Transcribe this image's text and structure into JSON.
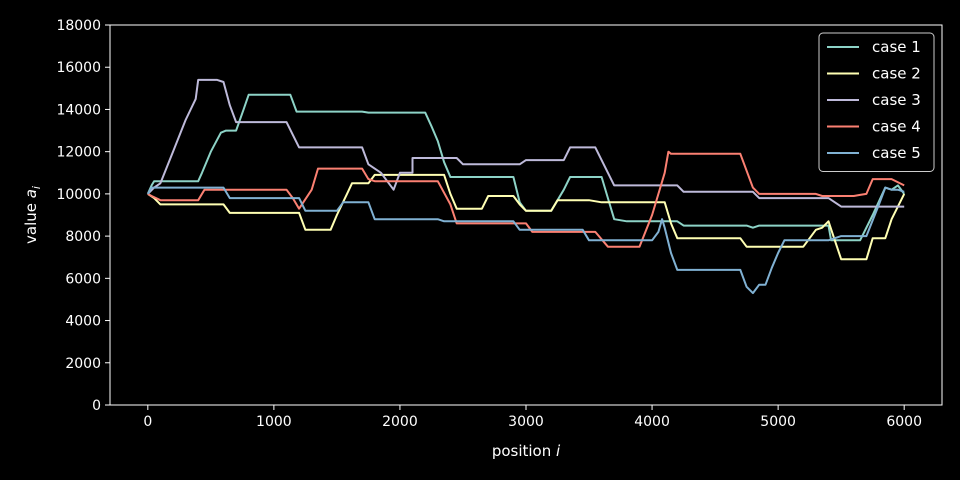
{
  "chart_data": {
    "type": "line",
    "title": "",
    "xlabel": "position i",
    "ylabel": "value a_i",
    "xlim": [
      -300,
      6300
    ],
    "ylim": [
      0,
      18000
    ],
    "xticks": [
      0,
      1000,
      2000,
      3000,
      4000,
      5000,
      6000
    ],
    "yticks": [
      0,
      2000,
      4000,
      6000,
      8000,
      10000,
      12000,
      14000,
      16000,
      18000
    ],
    "legend": {
      "position": "top-right"
    },
    "series": [
      {
        "name": "case 1",
        "color": "#8dd3c7",
        "points": [
          [
            0,
            10000
          ],
          [
            30,
            10400
          ],
          [
            50,
            10600
          ],
          [
            200,
            10600
          ],
          [
            400,
            10600
          ],
          [
            430,
            11000
          ],
          [
            500,
            12000
          ],
          [
            580,
            12900
          ],
          [
            620,
            13000
          ],
          [
            700,
            13000
          ],
          [
            760,
            14000
          ],
          [
            800,
            14700
          ],
          [
            1000,
            14700
          ],
          [
            1130,
            14700
          ],
          [
            1180,
            13900
          ],
          [
            1400,
            13900
          ],
          [
            1700,
            13900
          ],
          [
            1750,
            13850
          ],
          [
            2200,
            13850
          ],
          [
            2250,
            13200
          ],
          [
            2300,
            12500
          ],
          [
            2350,
            11500
          ],
          [
            2400,
            10800
          ],
          [
            2500,
            10800
          ],
          [
            2900,
            10800
          ],
          [
            2950,
            9600
          ],
          [
            3000,
            9200
          ],
          [
            3200,
            9200
          ],
          [
            3300,
            10200
          ],
          [
            3350,
            10800
          ],
          [
            3600,
            10800
          ],
          [
            3650,
            9800
          ],
          [
            3700,
            8800
          ],
          [
            3800,
            8700
          ],
          [
            4200,
            8700
          ],
          [
            4250,
            8500
          ],
          [
            4750,
            8500
          ],
          [
            4800,
            8400
          ],
          [
            4850,
            8500
          ],
          [
            5400,
            8500
          ],
          [
            5420,
            7800
          ],
          [
            5600,
            7800
          ],
          [
            5650,
            7800
          ],
          [
            5750,
            9000
          ],
          [
            5850,
            10300
          ],
          [
            5900,
            10200
          ],
          [
            5950,
            10400
          ],
          [
            6000,
            10000
          ]
        ]
      },
      {
        "name": "case 2",
        "color": "#ffffb3",
        "points": [
          [
            0,
            10000
          ],
          [
            50,
            9800
          ],
          [
            100,
            9500
          ],
          [
            500,
            9500
          ],
          [
            600,
            9500
          ],
          [
            650,
            9100
          ],
          [
            1000,
            9100
          ],
          [
            1200,
            9100
          ],
          [
            1250,
            8300
          ],
          [
            1450,
            8300
          ],
          [
            1500,
            9000
          ],
          [
            1580,
            10000
          ],
          [
            1620,
            10500
          ],
          [
            1750,
            10500
          ],
          [
            1800,
            10900
          ],
          [
            2000,
            10900
          ],
          [
            2350,
            10900
          ],
          [
            2400,
            10000
          ],
          [
            2450,
            9300
          ],
          [
            2650,
            9300
          ],
          [
            2700,
            9900
          ],
          [
            2900,
            9900
          ],
          [
            2950,
            9500
          ],
          [
            3000,
            9200
          ],
          [
            3200,
            9200
          ],
          [
            3250,
            9700
          ],
          [
            3500,
            9700
          ],
          [
            3600,
            9600
          ],
          [
            3900,
            9600
          ],
          [
            4100,
            9600
          ],
          [
            4150,
            8600
          ],
          [
            4200,
            7900
          ],
          [
            4500,
            7900
          ],
          [
            4700,
            7900
          ],
          [
            4750,
            7500
          ],
          [
            5000,
            7500
          ],
          [
            5050,
            7500
          ],
          [
            5200,
            7500
          ],
          [
            5300,
            8300
          ],
          [
            5350,
            8400
          ],
          [
            5400,
            8700
          ],
          [
            5450,
            7800
          ],
          [
            5500,
            6900
          ],
          [
            5700,
            6900
          ],
          [
            5750,
            7900
          ],
          [
            5850,
            7900
          ],
          [
            5900,
            8800
          ],
          [
            6000,
            10000
          ]
        ]
      },
      {
        "name": "case 3",
        "color": "#bebada",
        "points": [
          [
            0,
            10000
          ],
          [
            50,
            10300
          ],
          [
            100,
            10500
          ],
          [
            200,
            12000
          ],
          [
            300,
            13500
          ],
          [
            380,
            14500
          ],
          [
            400,
            15400
          ],
          [
            550,
            15400
          ],
          [
            600,
            15300
          ],
          [
            650,
            14200
          ],
          [
            700,
            13400
          ],
          [
            1000,
            13400
          ],
          [
            1100,
            13400
          ],
          [
            1150,
            12800
          ],
          [
            1200,
            12200
          ],
          [
            1500,
            12200
          ],
          [
            1700,
            12200
          ],
          [
            1750,
            11400
          ],
          [
            1850,
            11000
          ],
          [
            1950,
            10200
          ],
          [
            2000,
            11000
          ],
          [
            2100,
            11000
          ],
          [
            2100,
            11700
          ],
          [
            2450,
            11700
          ],
          [
            2500,
            11400
          ],
          [
            2950,
            11400
          ],
          [
            3000,
            11600
          ],
          [
            3300,
            11600
          ],
          [
            3350,
            12200
          ],
          [
            3550,
            12200
          ],
          [
            3700,
            10400
          ],
          [
            4200,
            10400
          ],
          [
            4250,
            10100
          ],
          [
            4800,
            10100
          ],
          [
            4850,
            9800
          ],
          [
            5400,
            9800
          ],
          [
            5500,
            9400
          ],
          [
            6000,
            9400
          ]
        ]
      },
      {
        "name": "case 4",
        "color": "#fb8072",
        "points": [
          [
            0,
            10000
          ],
          [
            30,
            9900
          ],
          [
            100,
            9700
          ],
          [
            400,
            9700
          ],
          [
            450,
            10200
          ],
          [
            600,
            10200
          ],
          [
            650,
            10200
          ],
          [
            1100,
            10200
          ],
          [
            1150,
            9800
          ],
          [
            1200,
            9300
          ],
          [
            1300,
            10200
          ],
          [
            1350,
            11200
          ],
          [
            1700,
            11200
          ],
          [
            1750,
            10700
          ],
          [
            1800,
            10600
          ],
          [
            2000,
            10600
          ],
          [
            2300,
            10600
          ],
          [
            2400,
            9500
          ],
          [
            2450,
            8600
          ],
          [
            2800,
            8600
          ],
          [
            3000,
            8600
          ],
          [
            3050,
            8200
          ],
          [
            3550,
            8200
          ],
          [
            3650,
            7500
          ],
          [
            3900,
            7500
          ],
          [
            4000,
            9000
          ],
          [
            4100,
            11000
          ],
          [
            4130,
            12000
          ],
          [
            4150,
            11900
          ],
          [
            4600,
            11900
          ],
          [
            4700,
            11900
          ],
          [
            4800,
            10300
          ],
          [
            4850,
            10000
          ],
          [
            5300,
            10000
          ],
          [
            5350,
            9900
          ],
          [
            5600,
            9900
          ],
          [
            5650,
            9950
          ],
          [
            5700,
            10000
          ],
          [
            5750,
            10700
          ],
          [
            5900,
            10700
          ],
          [
            6000,
            10400
          ]
        ]
      },
      {
        "name": "case 5",
        "color": "#80b1d3",
        "points": [
          [
            0,
            10000
          ],
          [
            30,
            10300
          ],
          [
            100,
            10300
          ],
          [
            500,
            10300
          ],
          [
            600,
            10300
          ],
          [
            650,
            9800
          ],
          [
            1000,
            9800
          ],
          [
            1200,
            9800
          ],
          [
            1250,
            9200
          ],
          [
            1500,
            9200
          ],
          [
            1550,
            9600
          ],
          [
            1750,
            9600
          ],
          [
            1800,
            8800
          ],
          [
            2250,
            8800
          ],
          [
            2300,
            8800
          ],
          [
            2350,
            8700
          ],
          [
            2800,
            8700
          ],
          [
            2900,
            8700
          ],
          [
            2950,
            8300
          ],
          [
            3200,
            8300
          ],
          [
            3450,
            8300
          ],
          [
            3500,
            7800
          ],
          [
            3800,
            7800
          ],
          [
            3850,
            7800
          ],
          [
            4000,
            7800
          ],
          [
            4050,
            8200
          ],
          [
            4080,
            8800
          ],
          [
            4100,
            8400
          ],
          [
            4150,
            7200
          ],
          [
            4200,
            6400
          ],
          [
            4700,
            6400
          ],
          [
            4750,
            5600
          ],
          [
            4800,
            5300
          ],
          [
            4850,
            5700
          ],
          [
            4900,
            5700
          ],
          [
            4950,
            6500
          ],
          [
            5000,
            7200
          ],
          [
            5050,
            7800
          ],
          [
            5250,
            7800
          ],
          [
            5300,
            7800
          ],
          [
            5400,
            7800
          ],
          [
            5450,
            7900
          ],
          [
            5500,
            8000
          ],
          [
            5700,
            8000
          ],
          [
            5800,
            9500
          ],
          [
            5850,
            10300
          ],
          [
            5900,
            10200
          ],
          [
            5950,
            10200
          ],
          [
            6000,
            10100
          ]
        ]
      }
    ]
  }
}
